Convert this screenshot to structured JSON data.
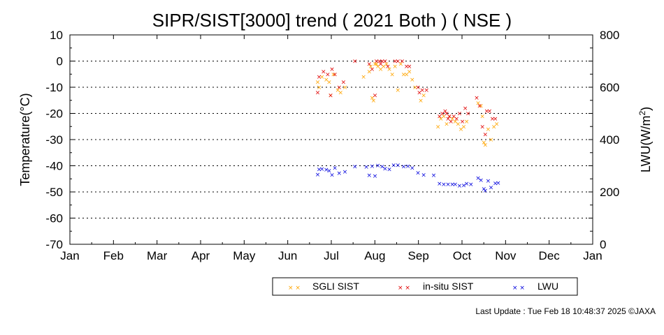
{
  "chart_data": {
    "type": "scatter",
    "title": "SIPR/SIST[3000] trend ( 2021 Both ) ( NSE )",
    "ylabel": "Temperature(°C)",
    "y2label": "LWU(W/m",
    "y2label_sup": "2",
    "y2label_end": ")",
    "ylim": [
      -70,
      10
    ],
    "y2lim": [
      0,
      800
    ],
    "yticks": [
      "10",
      "0",
      "-10",
      "-20",
      "-30",
      "-40",
      "-50",
      "-60",
      "-70"
    ],
    "y2ticks": [
      "800",
      "600",
      "400",
      "200",
      "0"
    ],
    "xticks": [
      "Jan",
      "Feb",
      "Mar",
      "Apr",
      "May",
      "Jun",
      "Jul",
      "Aug",
      "Sep",
      "Oct",
      "Nov",
      "Dec",
      "Jan"
    ],
    "xlim_doy": [
      1,
      366
    ],
    "grid": "horizontal dotted",
    "marker": "×",
    "series": [
      {
        "name": "SGLI SIST",
        "color": "#ffa500",
        "axis": "left",
        "x_doy": [
          174,
          175,
          177,
          180,
          182,
          183,
          185,
          188,
          190,
          193,
          206,
          210,
          211,
          212,
          213,
          214,
          215,
          216,
          218,
          220,
          222,
          224,
          226,
          228,
          230,
          232,
          234,
          236,
          238,
          240,
          242,
          246,
          248,
          258,
          260,
          262,
          264,
          266,
          268,
          270,
          272,
          274,
          276,
          278,
          286,
          288,
          289,
          290,
          291,
          293,
          295,
          297,
          299
        ],
        "y": [
          -8,
          -10,
          -6,
          -7,
          -8,
          -13,
          -5,
          -11,
          -12,
          -10,
          -6,
          -4,
          -2,
          -14,
          -15,
          -1,
          -1,
          -2,
          -3,
          -2,
          -1,
          -3,
          -5,
          -2,
          -11,
          -1,
          -5,
          -5,
          -4,
          -7,
          -10,
          -15,
          -13,
          -25,
          -22,
          -21,
          -24,
          -21,
          -22,
          -23,
          -24,
          -26,
          -25,
          -23,
          -16,
          -17,
          -21,
          -31,
          -32,
          -26,
          -30,
          -25,
          -24
        ]
      },
      {
        "name": "in-situ SIST",
        "color": "#e00000",
        "axis": "left",
        "x_doy": [
          174,
          175,
          178,
          181,
          183,
          184,
          186,
          189,
          192,
          200,
          210,
          212,
          214,
          215,
          217,
          218,
          219,
          221,
          223,
          228,
          230,
          233,
          236,
          238,
          244,
          245,
          247,
          250,
          259,
          261,
          263,
          264,
          265,
          266,
          267,
          269,
          271,
          273,
          275,
          277,
          279,
          285,
          287,
          289,
          291,
          292,
          294,
          296,
          298
        ],
        "y": [
          -12,
          -6,
          -4,
          -5,
          -13,
          -3,
          -5,
          -10,
          -8,
          0,
          -1,
          -3,
          -13,
          0,
          0,
          -1,
          0,
          0,
          -2,
          0,
          0,
          0,
          -2,
          -2,
          -10,
          -12,
          -11,
          -11,
          -21,
          -20,
          -19,
          -20,
          -22,
          -21,
          -23,
          -21,
          -22,
          -20,
          -23,
          -18,
          -20,
          -14,
          -17,
          -25,
          -28,
          -19,
          -19,
          -22,
          -22
        ]
      },
      {
        "name": "LWU",
        "color": "#0000dd",
        "axis": "right",
        "x_doy": [
          174,
          175,
          177,
          180,
          182,
          184,
          186,
          189,
          193,
          200,
          208,
          210,
          212,
          214,
          216,
          219,
          221,
          224,
          227,
          230,
          234,
          237,
          240,
          244,
          248,
          255,
          259,
          262,
          265,
          268,
          270,
          273,
          276,
          278,
          281,
          286,
          288,
          290,
          291,
          293,
          295,
          298,
          300
        ],
        "y": [
          267,
          287,
          288,
          286,
          282,
          265,
          292,
          272,
          277,
          298,
          296,
          264,
          299,
          261,
          301,
          298,
          290,
          287,
          303,
          303,
          297,
          299,
          292,
          273,
          265,
          264,
          232,
          229,
          229,
          230,
          230,
          224,
          225,
          232,
          230,
          253,
          245,
          212,
          205,
          243,
          217,
          234,
          235
        ]
      }
    ],
    "legend": {
      "entries": [
        "SGLI SIST",
        "in-situ SIST",
        "LWU"
      ],
      "placement": "bottom-right"
    },
    "footer": "Last Update : Tue Feb 18 10:48:37 2025  ©JAXA"
  }
}
